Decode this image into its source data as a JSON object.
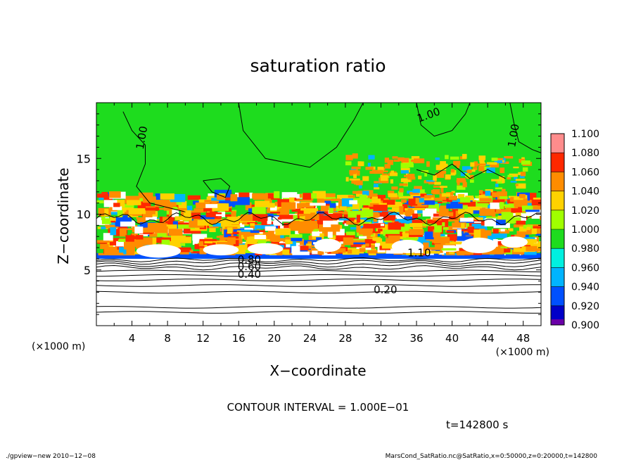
{
  "chart_data": {
    "type": "heatmap",
    "title": "saturation ratio",
    "xlabel": "X−coordinate",
    "ylabel": "Z−coordinate",
    "x_unit": "(×1000 m)",
    "y_unit": "(×1000 m)",
    "xlim": [
      0,
      50
    ],
    "ylim": [
      0,
      20
    ],
    "x_ticks": [
      4,
      8,
      12,
      16,
      20,
      24,
      28,
      32,
      36,
      40,
      44,
      48
    ],
    "y_ticks": [
      5,
      10,
      15
    ],
    "colorbar": {
      "levels": [
        0.9,
        0.92,
        0.94,
        0.96,
        0.98,
        1.0,
        1.02,
        1.04,
        1.06,
        1.08,
        1.1
      ],
      "labels": [
        "0.900",
        "0.920",
        "0.940",
        "0.960",
        "0.980",
        "1.000",
        "1.020",
        "1.040",
        "1.060",
        "1.080",
        "1.100"
      ],
      "colors": [
        "#6a00a8",
        "#0000c8",
        "#0050ff",
        "#00b4ff",
        "#00f0e0",
        "#1edc1e",
        "#a0ff00",
        "#ffd200",
        "#ff8c00",
        "#ff2800",
        "#ff8c8c"
      ]
    },
    "contour_labels": [
      "1.00",
      "1.00",
      "1.00",
      "1.10",
      "0.80",
      "0.60",
      "0.40",
      "0.20"
    ],
    "contour_interval_text": "CONTOUR INTERVAL = 1.000E−01",
    "time_text": "t=142800 s"
  },
  "footer": {
    "left": "./gpview−new 2010−12−08",
    "right": "MarsCond_SatRatio.nc@SatRatio,x=0:50000,z=0:20000,t=142800"
  }
}
